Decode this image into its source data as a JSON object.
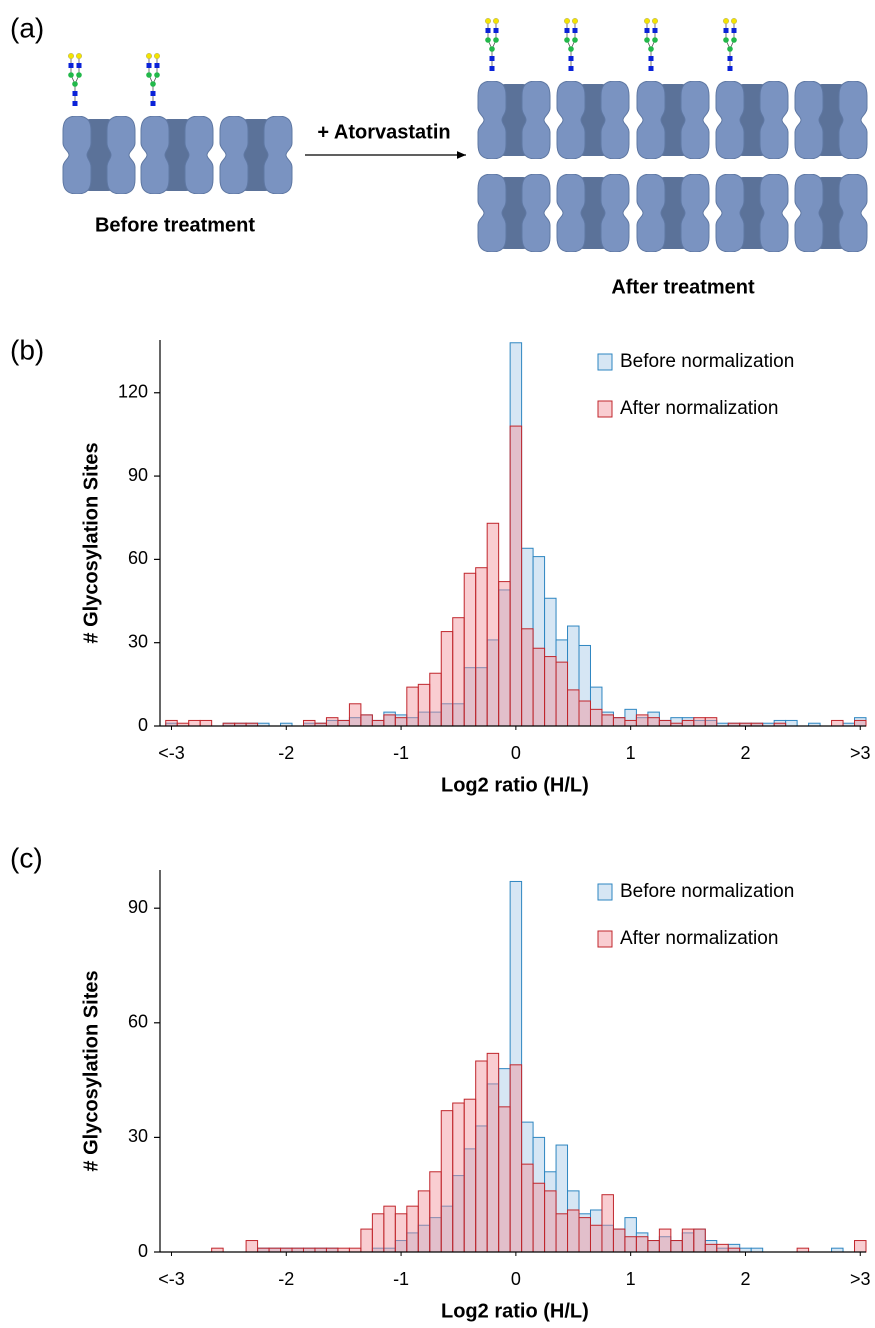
{
  "diagram": {
    "panel_label": "(a)",
    "arrow_label": "+ Atorvastatin",
    "before_label": "Before treatment",
    "after_label": "After treatment"
  },
  "chart_data": [
    {
      "type": "histogram",
      "panel_label": "(b)",
      "x_label": "Log2 ratio (H/L)",
      "y_label": "# Glycosylation Sites",
      "bins": [
        -3.05,
        -2.95,
        -2.85,
        -2.75,
        -2.65,
        -2.55,
        -2.45,
        -2.35,
        -2.25,
        -2.15,
        -2.05,
        -1.95,
        -1.85,
        -1.75,
        -1.65,
        -1.55,
        -1.45,
        -1.35,
        -1.25,
        -1.15,
        -1.05,
        -0.95,
        -0.85,
        -0.75,
        -0.65,
        -0.55,
        -0.45,
        -0.35,
        -0.25,
        -0.15,
        -0.05,
        0.05,
        0.15,
        0.25,
        0.35,
        0.45,
        0.55,
        0.65,
        0.75,
        0.85,
        0.95,
        1.05,
        1.15,
        1.25,
        1.35,
        1.45,
        1.55,
        1.65,
        1.75,
        1.85,
        1.95,
        2.05,
        2.15,
        2.25,
        2.35,
        2.45,
        2.55,
        2.65,
        2.75,
        2.85,
        2.95,
        3.05
      ],
      "series": [
        {
          "name": "Before normalization",
          "color": "#2e86c1",
          "fill": "#d6e6f4",
          "fill_opacity": 1,
          "values": [
            1,
            0,
            0,
            0,
            0,
            1,
            1,
            1,
            1,
            0,
            1,
            0,
            1,
            1,
            2,
            2,
            3,
            4,
            2,
            5,
            4,
            3,
            5,
            5,
            8,
            8,
            21,
            21,
            31,
            49,
            138,
            64,
            61,
            46,
            31,
            36,
            29,
            14,
            5,
            3,
            6,
            3,
            5,
            2,
            3,
            3,
            2,
            2,
            1,
            1,
            1,
            1,
            1,
            2,
            2,
            0,
            1,
            0,
            0,
            1,
            3
          ]
        },
        {
          "name": "After normalization",
          "color": "#c0262c",
          "fill": "#f2909a",
          "fill_opacity": 0.45,
          "values": [
            2,
            1,
            2,
            2,
            0,
            1,
            1,
            1,
            0,
            0,
            0,
            0,
            2,
            1,
            3,
            2,
            8,
            4,
            2,
            4,
            3,
            14,
            15,
            19,
            34,
            39,
            55,
            57,
            73,
            52,
            108,
            35,
            28,
            25,
            23,
            13,
            9,
            6,
            4,
            3,
            2,
            4,
            3,
            2,
            1,
            2,
            3,
            3,
            0,
            1,
            1,
            1,
            0,
            1,
            0,
            0,
            0,
            0,
            2,
            0,
            2
          ]
        }
      ],
      "xlim": [
        -3.1,
        3.05
      ],
      "xticks": [
        {
          "value": -3,
          "label": "<-3"
        },
        -2,
        -1,
        0,
        1,
        2,
        {
          "value": 3,
          "label": ">3"
        }
      ],
      "ylim": [
        0,
        139
      ],
      "yticks": [
        0,
        30,
        60,
        90,
        120
      ],
      "legend": "upper right",
      "grid": false
    },
    {
      "type": "histogram",
      "panel_label": "(c)",
      "x_label": "Log2 ratio (H/L)",
      "y_label": "# Glycosylation Sites",
      "bins": [
        -3.05,
        -2.95,
        -2.85,
        -2.75,
        -2.65,
        -2.55,
        -2.45,
        -2.35,
        -2.25,
        -2.15,
        -2.05,
        -1.95,
        -1.85,
        -1.75,
        -1.65,
        -1.55,
        -1.45,
        -1.35,
        -1.25,
        -1.15,
        -1.05,
        -0.95,
        -0.85,
        -0.75,
        -0.65,
        -0.55,
        -0.45,
        -0.35,
        -0.25,
        -0.15,
        -0.05,
        0.05,
        0.15,
        0.25,
        0.35,
        0.45,
        0.55,
        0.65,
        0.75,
        0.85,
        0.95,
        1.05,
        1.15,
        1.25,
        1.35,
        1.45,
        1.55,
        1.65,
        1.75,
        1.85,
        1.95,
        2.05,
        2.15,
        2.25,
        2.35,
        2.45,
        2.55,
        2.65,
        2.75,
        2.85,
        2.95,
        3.05
      ],
      "series": [
        {
          "name": "Before normalization",
          "color": "#2e86c1",
          "fill": "#d6e6f4",
          "fill_opacity": 1,
          "values": [
            0,
            0,
            0,
            0,
            0,
            0,
            0,
            0,
            1,
            1,
            1,
            1,
            1,
            1,
            1,
            0,
            0,
            0,
            1,
            1,
            3,
            5,
            7,
            9,
            12,
            20,
            27,
            33,
            44,
            48,
            97,
            34,
            30,
            21,
            28,
            16,
            10,
            11,
            7,
            6,
            9,
            5,
            3,
            4,
            3,
            5,
            6,
            3,
            1,
            2,
            1,
            1,
            0,
            0,
            0,
            0,
            0,
            0,
            1,
            0,
            0
          ]
        },
        {
          "name": "After normalization",
          "color": "#c0262c",
          "fill": "#f2909a",
          "fill_opacity": 0.45,
          "values": [
            0,
            0,
            0,
            0,
            1,
            0,
            0,
            3,
            1,
            1,
            1,
            1,
            1,
            1,
            1,
            1,
            1,
            6,
            10,
            12,
            10,
            12,
            16,
            21,
            37,
            39,
            40,
            50,
            52,
            38,
            49,
            23,
            18,
            16,
            10,
            11,
            9,
            7,
            15,
            6,
            4,
            4,
            3,
            6,
            3,
            6,
            6,
            2,
            2,
            1,
            0,
            0,
            0,
            0,
            0,
            1,
            0,
            0,
            0,
            0,
            3
          ]
        }
      ],
      "xlim": [
        -3.1,
        3.05
      ],
      "xticks": [
        {
          "value": -3,
          "label": "<-3"
        },
        -2,
        -1,
        0,
        1,
        2,
        {
          "value": 3,
          "label": ">3"
        }
      ],
      "ylim": [
        0,
        100
      ],
      "yticks": [
        0,
        30,
        60,
        90
      ],
      "legend": "upper right",
      "grid": false
    }
  ]
}
